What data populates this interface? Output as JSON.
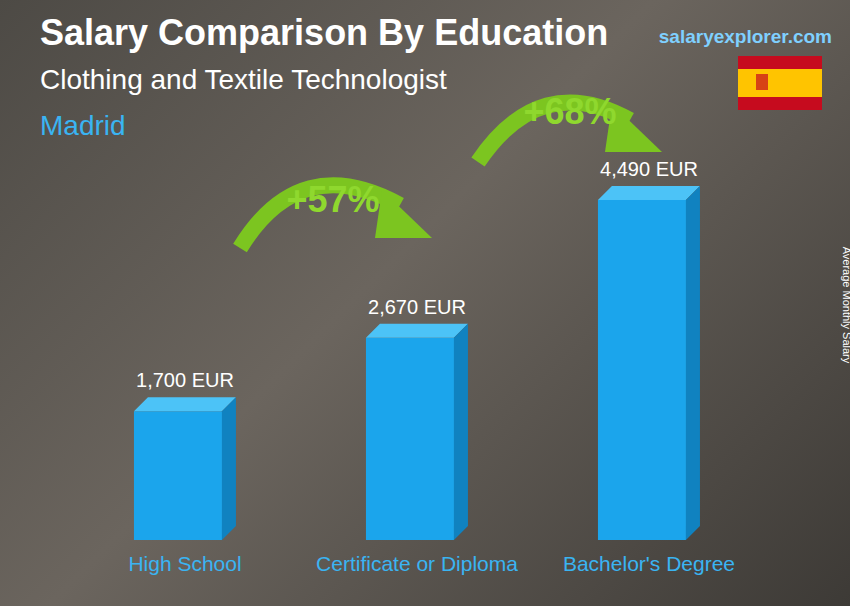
{
  "chart_data": {
    "type": "bar",
    "title": "Salary Comparison By Education",
    "subtitle": [
      "Clothing and Textile Technologist",
      "Madrid"
    ],
    "source": "salaryexplorer.com",
    "y_label": "Average Monthly Salary",
    "categories": [
      "High School",
      "Certificate or Diploma",
      "Bachelor's Degree"
    ],
    "values": [
      1700,
      2670,
      4490
    ],
    "value_labels": [
      "1,700 EUR",
      "2,670 EUR",
      "4,490 EUR"
    ],
    "data_labels": true,
    "color": "#1ba5ec",
    "tick_labels": "x",
    "grid": false,
    "annotations": [
      "+57%",
      "+68%"
    ]
  }
}
